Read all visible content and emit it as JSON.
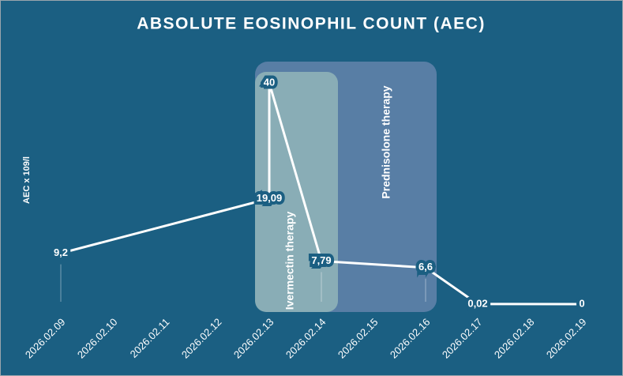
{
  "chart_data": {
    "type": "line",
    "title": "ABSOLUTE EOSINOPHIL COUNT (AEC)",
    "y_label": "AEC x 109/l",
    "xticks": [
      "2026.02.09",
      "2026.02.10",
      "2026.02.11",
      "2026.02.12",
      "2026.02.13",
      "2026.02.14",
      "2026.02.15",
      "2026.02.16",
      "2026.02.17",
      "2026.02.18",
      "2026.02.19"
    ],
    "x": [
      "2026.02.09",
      "2026.02.13",
      "2026.02.13",
      "2026.02.14",
      "2026.02.16",
      "2026.02.17",
      "2026.02.19"
    ],
    "values": [
      9.2,
      19.09,
      40,
      7.79,
      6.6,
      0.02,
      0
    ],
    "value_labels": [
      "9,2",
      "19,09",
      "40",
      "7,79",
      "6,6",
      "0,02",
      "0"
    ],
    "color": "#ffffff",
    "ylim": [
      0,
      50
    ],
    "annotations": [
      "Prednisolone therapy",
      "Ivermectin therapy"
    ]
  }
}
